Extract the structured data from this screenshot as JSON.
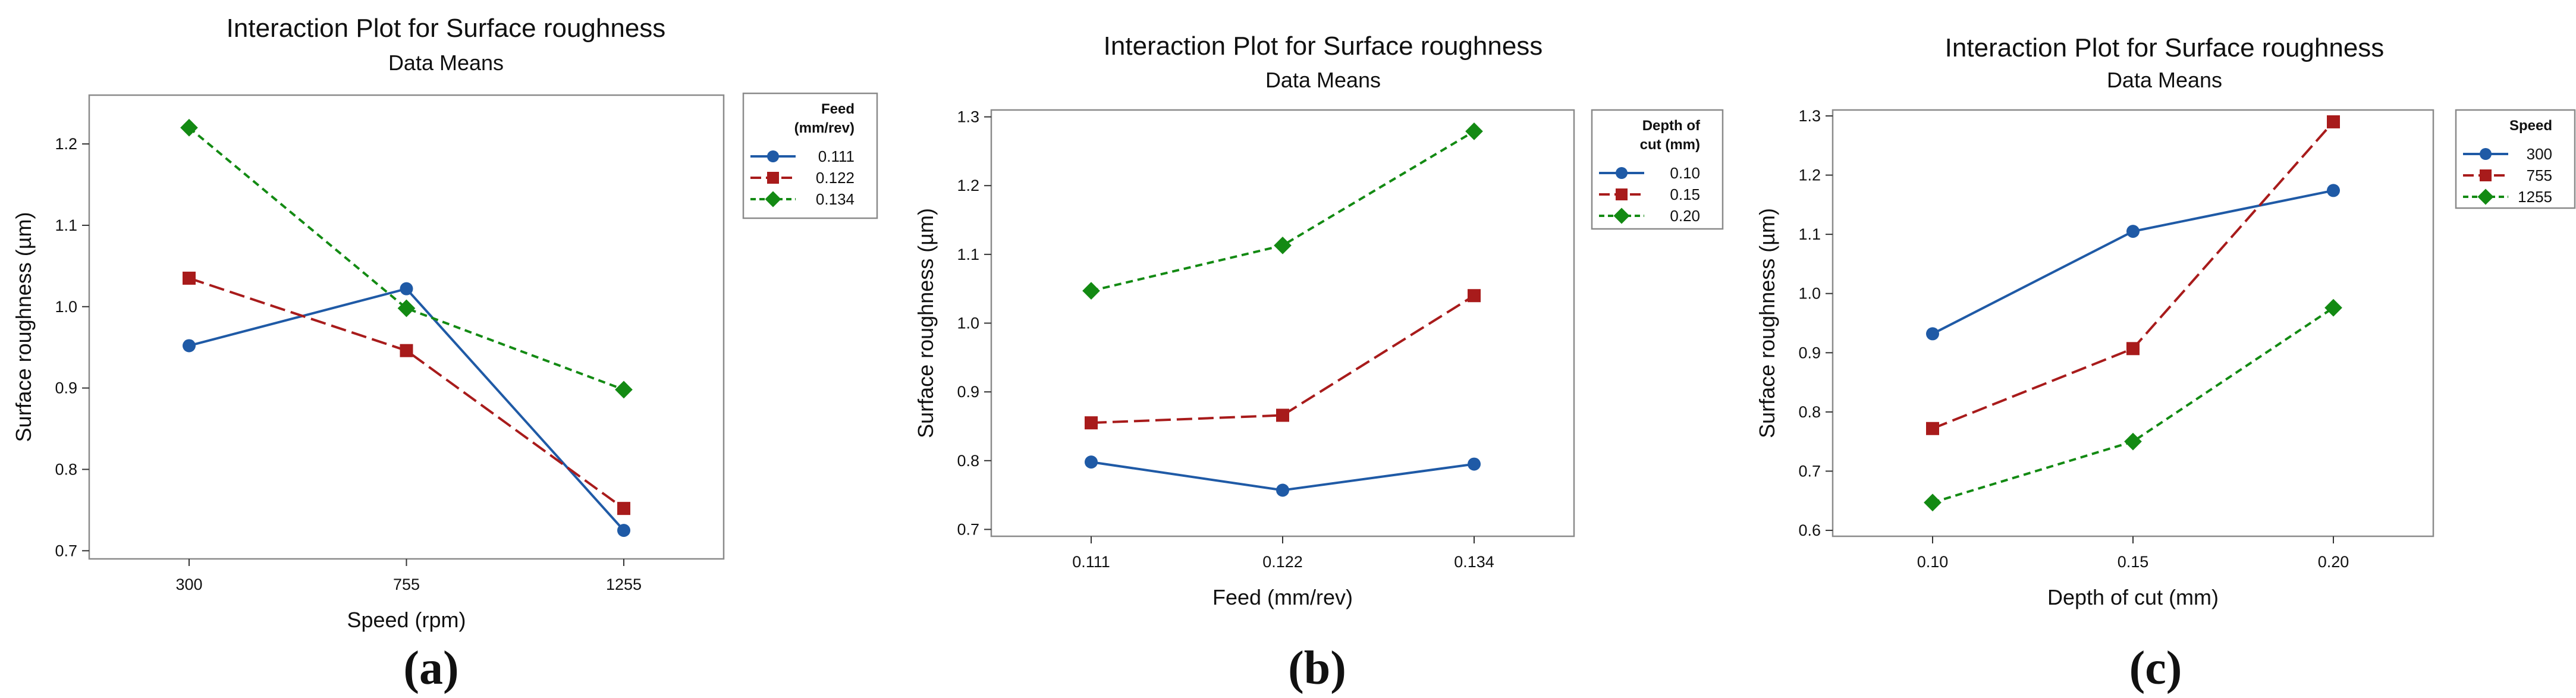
{
  "colors": {
    "series": [
      "#1f5aa6",
      "#a81b1b",
      "#138a13"
    ],
    "frame": "#8a8a8a",
    "plot_bg": "#ffffff"
  },
  "chart_data": [
    {
      "type": "line",
      "panel_label": "(a)",
      "title": "Interaction Plot for Surface roughness",
      "subtitle": "Data Means",
      "xlabel": "Speed (rpm)",
      "ylabel": "Surface roughness (µm)",
      "categories": [
        "300",
        "755",
        "1255"
      ],
      "ylim": [
        0.69,
        1.26
      ],
      "yticks": [
        0.7,
        0.8,
        0.9,
        1.0,
        1.1,
        1.2
      ],
      "ytick_labels": [
        "0.7",
        "0.8",
        "0.9",
        "1.0",
        "1.1",
        "1.2"
      ],
      "legend_title": [
        "Feed",
        "(mm/rev)"
      ],
      "series": [
        {
          "name": "0.111",
          "marker": "circle",
          "dash": "solid",
          "values": [
            0.952,
            1.022,
            0.725
          ]
        },
        {
          "name": "0.122",
          "marker": "square",
          "dash": "long",
          "values": [
            1.035,
            0.946,
            0.752
          ]
        },
        {
          "name": "0.134",
          "marker": "diamond",
          "dash": "short",
          "values": [
            1.22,
            0.998,
            0.898
          ]
        }
      ]
    },
    {
      "type": "line",
      "panel_label": "(b)",
      "title": "Interaction Plot for Surface roughness",
      "subtitle": "Data Means",
      "xlabel": "Feed (mm/rev)",
      "ylabel": "Surface roughness (µm)",
      "categories": [
        "0.111",
        "0.122",
        "0.134"
      ],
      "ylim": [
        0.69,
        1.31
      ],
      "yticks": [
        0.7,
        0.8,
        0.9,
        1.0,
        1.1,
        1.2,
        1.3
      ],
      "ytick_labels": [
        "0.7",
        "0.8",
        "0.9",
        "1.0",
        "1.1",
        "1.2",
        "1.3"
      ],
      "legend_title": [
        "Depth of",
        "cut (mm)"
      ],
      "series": [
        {
          "name": "0.10",
          "marker": "circle",
          "dash": "solid",
          "values": [
            0.798,
            0.757,
            0.795
          ]
        },
        {
          "name": "0.15",
          "marker": "square",
          "dash": "long",
          "values": [
            0.855,
            0.866,
            1.04
          ]
        },
        {
          "name": "0.20",
          "marker": "diamond",
          "dash": "short",
          "values": [
            1.047,
            1.113,
            1.279
          ]
        }
      ]
    },
    {
      "type": "line",
      "panel_label": "(c)",
      "title": "Interaction Plot for Surface roughness",
      "subtitle": "Data Means",
      "xlabel": "Depth of cut (mm)",
      "ylabel": "Surface roughness (µm)",
      "categories": [
        "0.10",
        "0.15",
        "0.20"
      ],
      "ylim": [
        0.59,
        1.31
      ],
      "yticks": [
        0.6,
        0.7,
        0.8,
        0.9,
        1.0,
        1.1,
        1.2,
        1.3
      ],
      "ytick_labels": [
        "0.6",
        "0.7",
        "0.8",
        "0.9",
        "1.0",
        "1.1",
        "1.2",
        "1.3"
      ],
      "legend_title": [
        "Speed"
      ],
      "series": [
        {
          "name": "300",
          "marker": "circle",
          "dash": "solid",
          "values": [
            0.932,
            1.105,
            1.174
          ]
        },
        {
          "name": "755",
          "marker": "square",
          "dash": "long",
          "values": [
            0.772,
            0.907,
            1.29
          ]
        },
        {
          "name": "1255",
          "marker": "diamond",
          "dash": "short",
          "values": [
            0.647,
            0.75,
            0.976
          ]
        }
      ]
    }
  ]
}
